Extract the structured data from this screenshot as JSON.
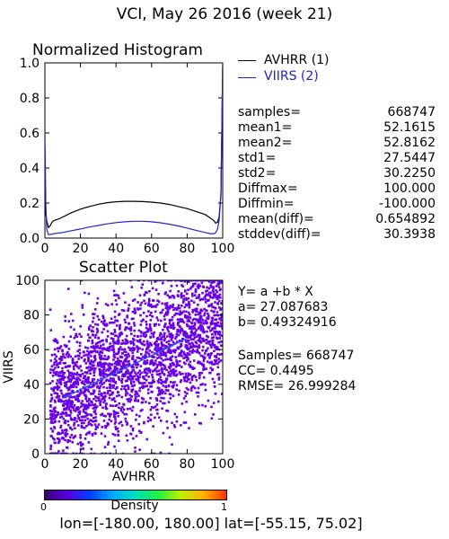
{
  "header": {
    "title": "VCI,  May 26 2016 (week 21)"
  },
  "histogram": {
    "title": "Normalized Histogram",
    "legend": [
      {
        "label": "AVHRR (1)",
        "color": "#000000"
      },
      {
        "label": "VIIRS (2)",
        "color": "#2222cc"
      }
    ],
    "stats": [
      {
        "label": "samples=",
        "value": "668747"
      },
      {
        "label": "mean1=",
        "value": "52.1615"
      },
      {
        "label": "mean2=",
        "value": "52.8162"
      },
      {
        "label": "std1=",
        "value": "27.5447"
      },
      {
        "label": "std2=",
        "value": "30.2250"
      },
      {
        "label": "Diffmax=",
        "value": "100.000"
      },
      {
        "label": "Diffmin=",
        "value": "-100.000"
      },
      {
        "label": "mean(diff)=",
        "value": "0.654892"
      },
      {
        "label": "stddev(diff)=",
        "value": "30.3938"
      }
    ]
  },
  "scatter": {
    "title": "Scatter Plot",
    "regression": [
      "Y=  a  +b  *  X",
      "a=  27.087683",
      "b=  0.49324916",
      "",
      "Samples=  668747",
      "CC=   0.4495",
      "RMSE=  26.999284"
    ]
  },
  "colorbar": {
    "label": "Density",
    "min_label": "0",
    "max_label": "1"
  },
  "footer": {
    "text": "lon=[-180.00, 180.00] lat=[-55.15, 75.02]"
  },
  "colors": {
    "avhrr": "#000000",
    "viirs": "#2222cc",
    "scatter_fill": "#6a00e8",
    "regression_line": "#2255ff"
  },
  "chart_data": [
    {
      "type": "line",
      "title": "Normalized Histogram",
      "xlim": [
        0,
        100
      ],
      "ylim": [
        0,
        1
      ],
      "xticks": [
        0,
        20,
        40,
        60,
        80,
        100
      ],
      "yticks": [
        0.0,
        0.2,
        0.4,
        0.6,
        0.8,
        1.0
      ],
      "ytick_labels": [
        "0.0",
        "0.2",
        "0.4",
        "0.6",
        "0.8",
        "1.0"
      ],
      "legend": "right",
      "series": [
        {
          "name": "AVHRR (1)",
          "color": "#000000",
          "x": [
            0,
            0.5,
            1,
            2,
            3,
            4,
            5,
            8,
            10,
            15,
            20,
            25,
            30,
            35,
            40,
            45,
            50,
            55,
            60,
            65,
            70,
            75,
            80,
            85,
            90,
            93,
            95,
            96,
            97,
            98,
            99,
            99.5,
            100
          ],
          "y": [
            0.35,
            0.14,
            0.1,
            0.06,
            0.07,
            0.09,
            0.1,
            0.11,
            0.12,
            0.145,
            0.165,
            0.18,
            0.193,
            0.202,
            0.207,
            0.21,
            0.21,
            0.208,
            0.205,
            0.2,
            0.192,
            0.18,
            0.168,
            0.152,
            0.135,
            0.115,
            0.1,
            0.085,
            0.09,
            0.12,
            0.25,
            0.6,
            1.0
          ]
        },
        {
          "name": "VIIRS (2)",
          "color": "#2222cc",
          "x": [
            0,
            0.5,
            1,
            2,
            3,
            5,
            10,
            15,
            20,
            25,
            30,
            35,
            40,
            45,
            50,
            55,
            60,
            65,
            70,
            75,
            80,
            85,
            90,
            93,
            95,
            96,
            97,
            98,
            99,
            99.5,
            100
          ],
          "y": [
            0.6,
            0.2,
            0.05,
            0.02,
            0.02,
            0.025,
            0.032,
            0.042,
            0.052,
            0.063,
            0.072,
            0.081,
            0.088,
            0.093,
            0.096,
            0.096,
            0.093,
            0.087,
            0.079,
            0.069,
            0.057,
            0.044,
            0.032,
            0.025,
            0.025,
            0.03,
            0.05,
            0.1,
            0.25,
            0.6,
            1.0
          ]
        }
      ]
    },
    {
      "type": "scatter",
      "title": "Scatter Plot",
      "xlabel": "AVHRR",
      "ylabel": "VIIRS",
      "xlim": [
        0,
        100
      ],
      "ylim": [
        0,
        100
      ],
      "xticks": [
        0,
        20,
        40,
        60,
        80,
        100
      ],
      "yticks": [
        0,
        20,
        40,
        60,
        80,
        100
      ],
      "samples": 668747,
      "regression": {
        "a": 27.087683,
        "b": 0.49324916,
        "x": [
          10,
          80
        ],
        "y": [
          32.0,
          66.5
        ]
      },
      "colorbar": {
        "label": "Density",
        "range": [
          0,
          1
        ]
      }
    }
  ]
}
